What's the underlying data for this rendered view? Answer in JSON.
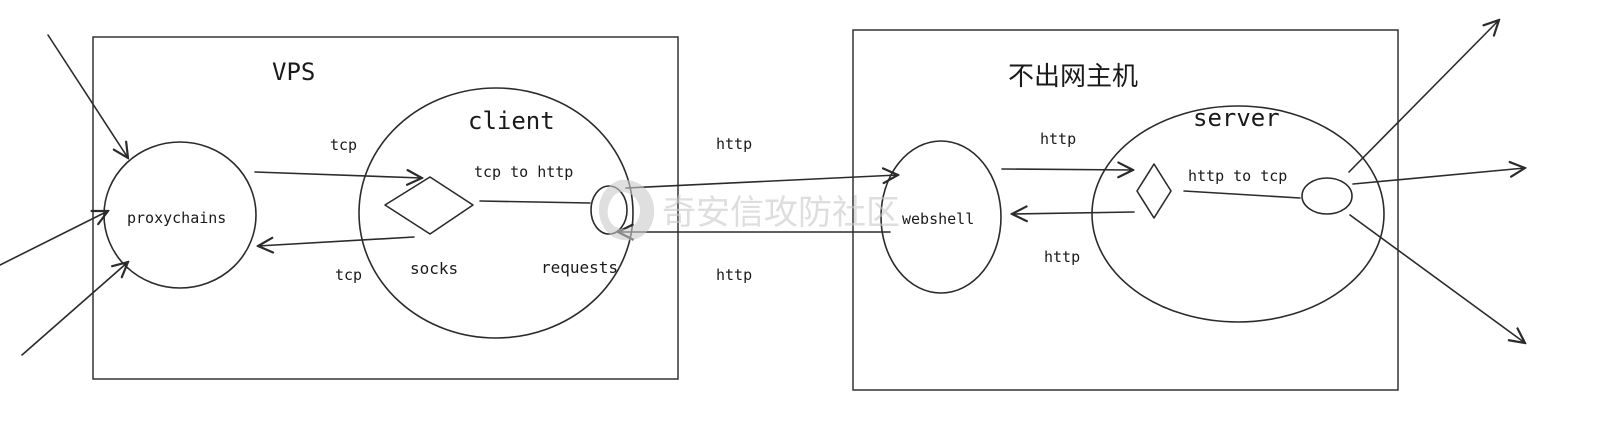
{
  "vps": {
    "title": "VPS",
    "proxychains": "proxychains",
    "client": "client",
    "socks": "socks",
    "requests": "requests",
    "tcp_top": "tcp",
    "tcp_bottom": "tcp",
    "tcp_to_http": "tcp to http"
  },
  "host": {
    "title": "不出网主机",
    "server": "server",
    "webshell": "webshell",
    "http_top": "http",
    "http_bottom": "http",
    "http_to_tcp": "http to tcp"
  },
  "link": {
    "http_top": "http",
    "http_bottom": "http"
  },
  "watermark": "奇安信攻防社区"
}
